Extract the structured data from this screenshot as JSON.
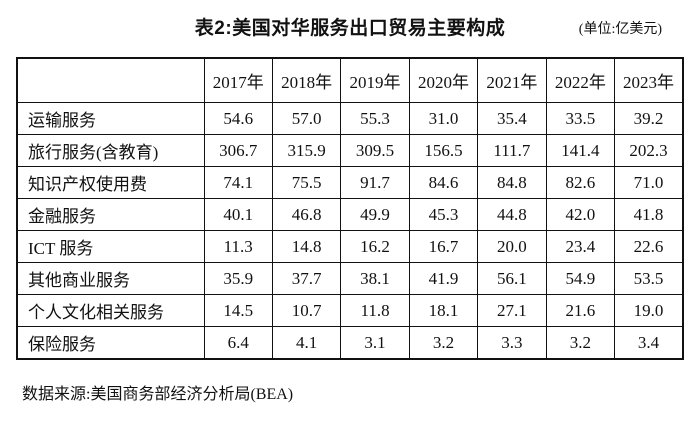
{
  "page": {
    "title": "表2:美国对华服务出口贸易主要构成",
    "unit": "(单位:亿美元)",
    "source": "数据来源:美国商务部经济分析局(BEA)"
  },
  "table": {
    "corner_label": "",
    "columns": [
      "2017年",
      "2018年",
      "2019年",
      "2020年",
      "2021年",
      "2022年",
      "2023年"
    ],
    "rows": [
      {
        "label": "运输服务",
        "values": [
          "54.6",
          "57.0",
          "55.3",
          "31.0",
          "35.4",
          "33.5",
          "39.2"
        ]
      },
      {
        "label": "旅行服务(含教育)",
        "values": [
          "306.7",
          "315.9",
          "309.5",
          "156.5",
          "111.7",
          "141.4",
          "202.3"
        ]
      },
      {
        "label": "知识产权使用费",
        "values": [
          "74.1",
          "75.5",
          "91.7",
          "84.6",
          "84.8",
          "82.6",
          "71.0"
        ]
      },
      {
        "label": "金融服务",
        "values": [
          "40.1",
          "46.8",
          "49.9",
          "45.3",
          "44.8",
          "42.0",
          "41.8"
        ]
      },
      {
        "label": "ICT 服务",
        "values": [
          "11.3",
          "14.8",
          "16.2",
          "16.7",
          "20.0",
          "23.4",
          "22.6"
        ]
      },
      {
        "label": "其他商业服务",
        "values": [
          "35.9",
          "37.7",
          "38.1",
          "41.9",
          "56.1",
          "54.9",
          "53.5"
        ]
      },
      {
        "label": "个人文化相关服务",
        "values": [
          "14.5",
          "10.7",
          "11.8",
          "18.1",
          "27.1",
          "21.6",
          "19.0"
        ]
      },
      {
        "label": "保险服务",
        "values": [
          "6.4",
          "4.1",
          "3.1",
          "3.2",
          "3.3",
          "3.2",
          "3.4"
        ]
      }
    ]
  }
}
